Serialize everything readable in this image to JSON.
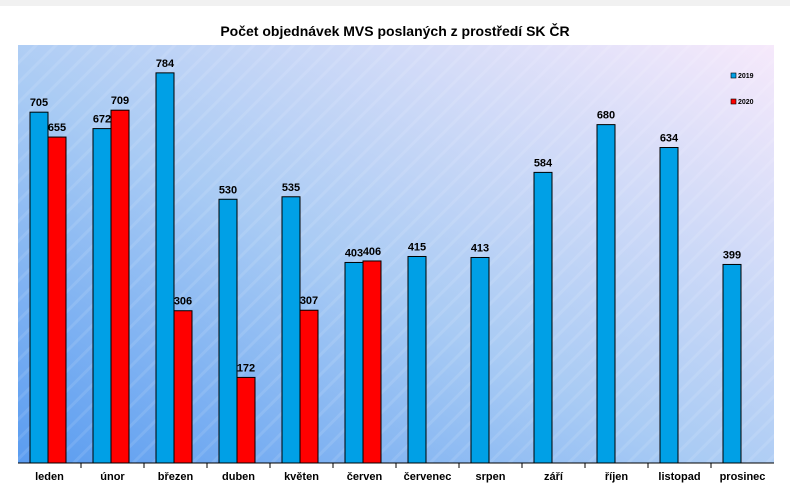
{
  "chart_data": {
    "type": "bar",
    "title": "Počet objednávek MVS poslaných z prostředí SK ČR",
    "categories": [
      "leden",
      "únor",
      "březen",
      "duben",
      "květen",
      "červen",
      "červenec",
      "srpen",
      "září",
      "říjen",
      "listopad",
      "prosinec"
    ],
    "series": [
      {
        "name": "2019",
        "color": "#00a0e6",
        "values": [
          705,
          672,
          784,
          530,
          535,
          403,
          415,
          413,
          584,
          680,
          634,
          399
        ]
      },
      {
        "name": "2020",
        "color": "#ff0000",
        "values": [
          655,
          709,
          306,
          172,
          307,
          406,
          null,
          null,
          null,
          null,
          null,
          null
        ]
      }
    ],
    "xlabel": "",
    "ylabel": "",
    "ylim": [
      0,
      840
    ],
    "grid": false,
    "legend": "right",
    "data_labels": true
  }
}
